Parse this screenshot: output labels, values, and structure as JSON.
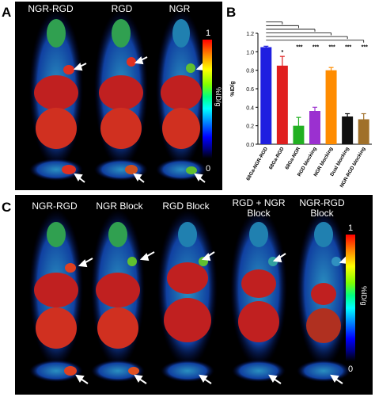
{
  "panels": {
    "a": {
      "letter": "A",
      "column_labels": [
        "NGR-RGD",
        "RGD",
        "NGR"
      ],
      "scale": {
        "max": "1",
        "min": "0",
        "unit": "%ID/g"
      }
    },
    "b": {
      "letter": "B",
      "significance": [
        "*",
        "***",
        "***",
        "***",
        "***",
        "***"
      ]
    },
    "c": {
      "letter": "C",
      "column_labels": [
        "NGR-RGD",
        "NGR Block",
        "RGD Block",
        "RGD + NGR\nBlock",
        "NGR-RGD\nBlock"
      ],
      "scale": {
        "max": "1",
        "min": "0",
        "unit": "%ID/g"
      }
    }
  },
  "chart_data": {
    "type": "bar",
    "categories": [
      "68Ga-NGR-RGD",
      "68Ga-RGD",
      "68Ga-NGR",
      "RGD blocking",
      "NGR blocking",
      "Dual blocking",
      "NGR-RGD blocking"
    ],
    "values": [
      1.05,
      0.85,
      0.2,
      0.36,
      0.8,
      0.3,
      0.27
    ],
    "errors": [
      0.01,
      0.1,
      0.09,
      0.04,
      0.03,
      0.03,
      0.06
    ],
    "colors": [
      "#1f1fe0",
      "#e01f1f",
      "#22b022",
      "#9b30d0",
      "#ff8c00",
      "#101010",
      "#a0702a"
    ],
    "ylabel": "%ID/g",
    "ylim": [
      0,
      1.2
    ],
    "yticks": [
      "0.0",
      "0.2",
      "0.4",
      "0.6",
      "0.8",
      "1.0",
      "1.2"
    ]
  }
}
